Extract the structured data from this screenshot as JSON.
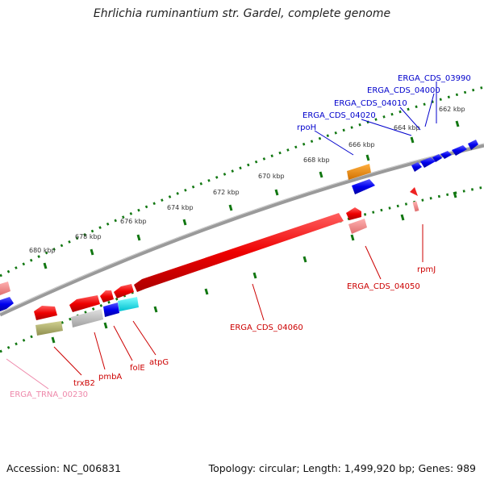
{
  "title": "Ehrlichia ruminantium str. Gardel, complete genome",
  "footer": {
    "accession": "Accession: NC_006831",
    "topology": "Topology: circular; Length: 1,499,920 bp; Genes: 989"
  },
  "scale_labels": [
    "662 kbp",
    "664 kbp",
    "666 kbp",
    "668 kbp",
    "670 kbp",
    "672 kbp",
    "674 kbp",
    "676 kbp",
    "678 kbp",
    "680 kbp"
  ],
  "gene_labels": {
    "forward": [
      "ERGA_CDS_03990",
      "ERGA_CDS_04000",
      "ERGA_CDS_04010",
      "ERGA_CDS_04020",
      "rpoH"
    ],
    "reverse": [
      "rpmJ",
      "ERGA_CDS_04050",
      "ERGA_CDS_04060",
      "atpG",
      "folE",
      "pmbA",
      "trxB2",
      "ERGA_TRNA_00230"
    ]
  },
  "colors": {
    "forward_cds": "#0000dd",
    "reverse_cds": "#dd0000",
    "label_forward": "#0000cc",
    "label_reverse": "#cc0000",
    "trna": "#ee88aa",
    "backbone": "#808080",
    "ticks": "#117711"
  }
}
